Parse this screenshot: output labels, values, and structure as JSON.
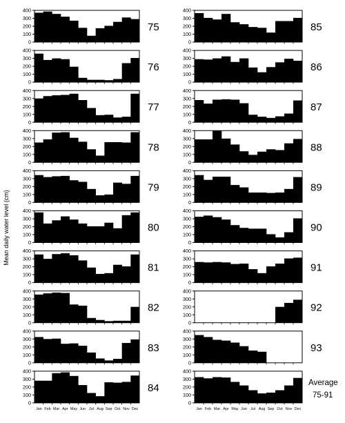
{
  "chart_data": {
    "type": "bar",
    "ylabel": "Mean daily water level (cm)",
    "ylim": [
      0,
      400
    ],
    "yticks": [
      0,
      100,
      200,
      300,
      400
    ],
    "categories": [
      "Jan",
      "Feb",
      "Mar",
      "Apr",
      "May",
      "Jun",
      "Jul",
      "Aug",
      "Sep",
      "Oct",
      "Nov",
      "Dec"
    ],
    "panels": [
      {
        "label": "75",
        "values": [
          370,
          385,
          355,
          320,
          270,
          180,
          80,
          175,
          205,
          255,
          310,
          290
        ]
      },
      {
        "label": "76",
        "values": [
          360,
          280,
          300,
          290,
          195,
          55,
          30,
          30,
          25,
          40,
          240,
          305
        ]
      },
      {
        "label": "77",
        "values": [
          300,
          330,
          340,
          345,
          360,
          280,
          180,
          90,
          95,
          60,
          70,
          360
        ]
      },
      {
        "label": "78",
        "values": [
          250,
          290,
          375,
          380,
          310,
          260,
          165,
          85,
          255,
          255,
          250,
          380
        ]
      },
      {
        "label": "79",
        "values": [
          345,
          320,
          330,
          335,
          280,
          260,
          170,
          90,
          100,
          250,
          235,
          335
        ]
      },
      {
        "label": "80",
        "values": [
          380,
          240,
          280,
          330,
          290,
          240,
          205,
          205,
          250,
          180,
          345,
          380
        ]
      },
      {
        "label": "81",
        "values": [
          355,
          300,
          360,
          370,
          345,
          280,
          190,
          110,
          120,
          225,
          205,
          355
        ]
      },
      {
        "label": "82",
        "values": [
          355,
          370,
          380,
          375,
          230,
          215,
          60,
          35,
          20,
          25,
          25,
          200
        ]
      },
      {
        "label": "83",
        "values": [
          325,
          300,
          305,
          240,
          245,
          215,
          130,
          55,
          30,
          50,
          250,
          295
        ]
      },
      {
        "label": "84",
        "values": [
          280,
          280,
          375,
          385,
          340,
          225,
          125,
          85,
          260,
          255,
          265,
          345
        ]
      },
      {
        "label": "85",
        "values": [
          365,
          305,
          285,
          355,
          250,
          225,
          190,
          180,
          120,
          265,
          265,
          305
        ]
      },
      {
        "label": "86",
        "values": [
          290,
          285,
          300,
          325,
          255,
          300,
          185,
          125,
          190,
          250,
          295,
          270
        ]
      },
      {
        "label": "87",
        "values": [
          280,
          235,
          285,
          290,
          285,
          240,
          95,
          70,
          55,
          75,
          110,
          275
        ]
      },
      {
        "label": "88",
        "values": [
          290,
          290,
          400,
          300,
          225,
          140,
          95,
          135,
          165,
          155,
          240,
          295
        ]
      },
      {
        "label": "89",
        "values": [
          345,
          285,
          325,
          325,
          220,
          190,
          125,
          125,
          120,
          125,
          170,
          320
        ]
      },
      {
        "label": "90",
        "values": [
          325,
          340,
          320,
          290,
          220,
          185,
          175,
          175,
          105,
          65,
          130,
          305
        ]
      },
      {
        "label": "91",
        "values": [
          260,
          255,
          260,
          255,
          235,
          240,
          170,
          120,
          205,
          240,
          305,
          315
        ]
      },
      {
        "label": "92",
        "values": [
          0,
          0,
          0,
          0,
          0,
          0,
          0,
          0,
          0,
          200,
          250,
          290
        ]
      },
      {
        "label": "93",
        "values": [
          350,
          325,
          290,
          280,
          255,
          210,
          155,
          140,
          0,
          0,
          0,
          0
        ]
      },
      {
        "label": "Average",
        "label2": "75-91",
        "values": [
          325,
          310,
          325,
          320,
          265,
          220,
          160,
          120,
          130,
          160,
          220,
          315
        ]
      }
    ]
  }
}
